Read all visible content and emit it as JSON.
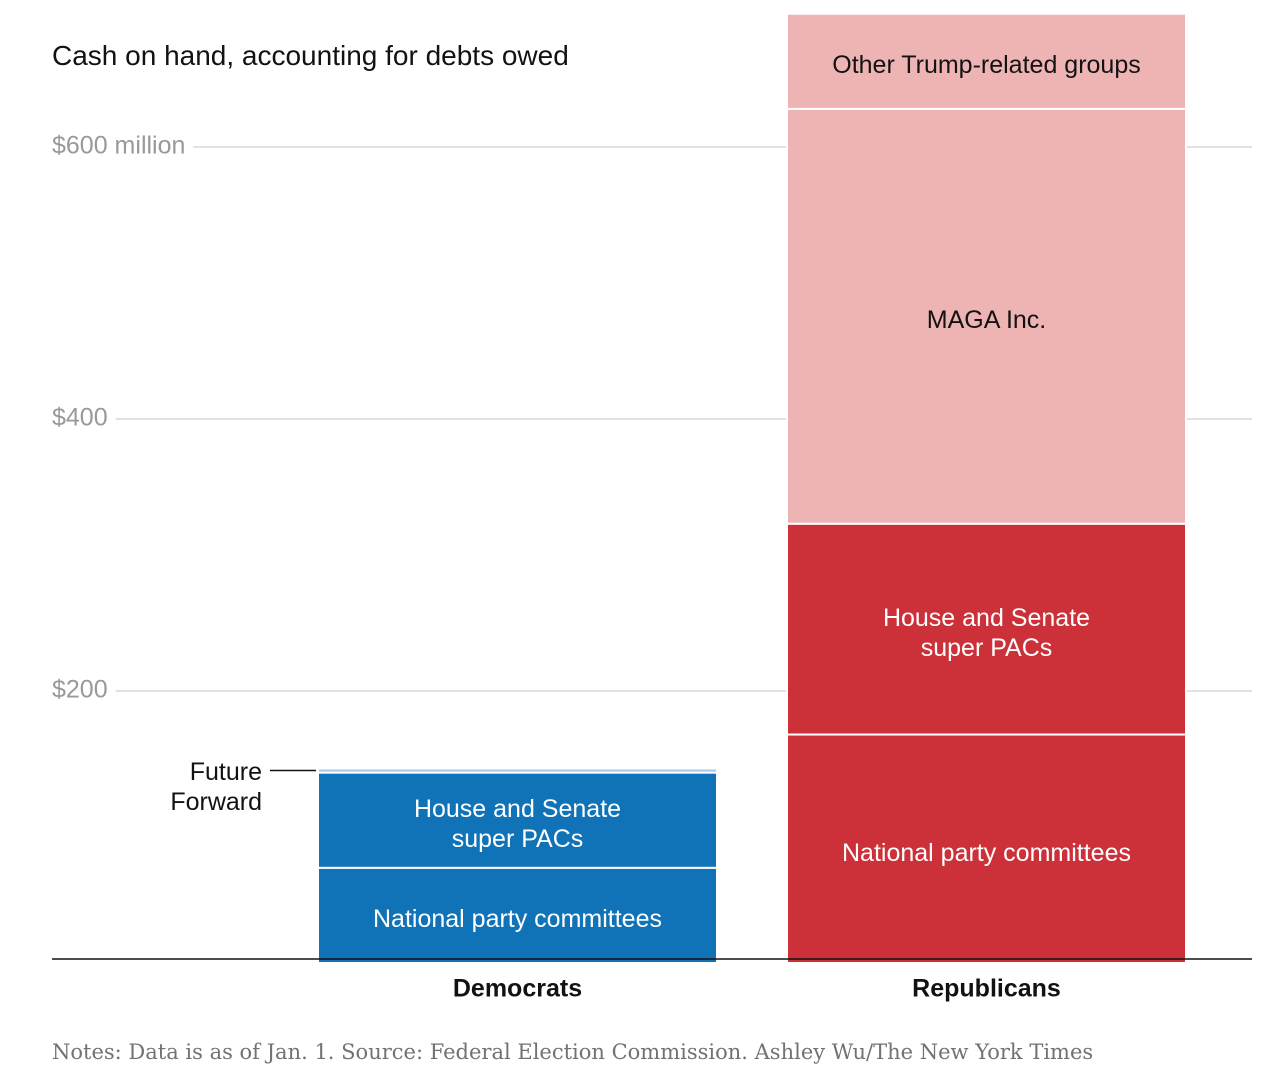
{
  "chart_data": {
    "type": "stacked_bar",
    "title": "Cash on hand, accounting for debts owed",
    "note": "Notes: Data is as of Jan. 1.  Source: Federal Election Commission.  Ashley Wu/The New York Times",
    "categories": [
      "Democrats",
      "Republicans"
    ],
    "series": [
      {
        "name": "National party committees",
        "colors": [
          "#1073b8",
          "#cc3038"
        ],
        "values": [
          70,
          168
        ]
      },
      {
        "name": "House and Senate super PACs",
        "colors": [
          "#1073b8",
          "#cc3038"
        ],
        "values": [
          70,
          155
        ]
      },
      {
        "name": "Future Forward",
        "colors": [
          "#a9c9e3",
          "#a9c9e3"
        ],
        "values": [
          3,
          null
        ]
      },
      {
        "name": "MAGA Inc.",
        "colors": [
          "#eeb4b4",
          "#eeb4b4"
        ],
        "values": [
          null,
          305
        ]
      },
      {
        "name": "Other Trump-related groups",
        "colors": [
          "#eeb4b4",
          "#eeb4b4"
        ],
        "values": [
          null,
          70
        ]
      }
    ],
    "ylim": [
      0,
      700
    ],
    "yticks": [
      {
        "value": 200,
        "label": "$200"
      },
      {
        "value": 400,
        "label": "$400"
      },
      {
        "value": 600,
        "label": "$600 million"
      }
    ],
    "grid": true
  }
}
